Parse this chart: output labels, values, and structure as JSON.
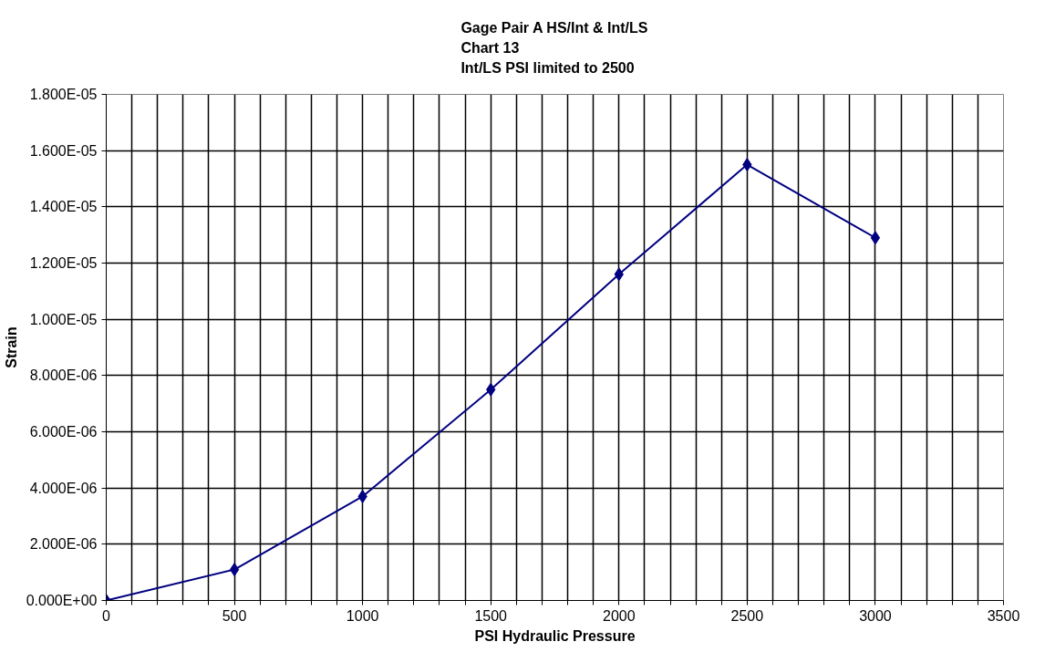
{
  "chart_data": {
    "type": "line",
    "title": "Gage Pair A HS/Int & Int/LS\nChart 13\nInt/LS PSI limited to 2500",
    "xlabel": "PSI Hydraulic Pressure",
    "ylabel": "Strain",
    "x": [
      0,
      500,
      1000,
      1500,
      2000,
      2500,
      3000
    ],
    "series": [
      {
        "color": "#000080",
        "values": [
          0.0,
          1.1e-06,
          3.7e-06,
          7.5e-06,
          1.16e-05,
          1.55e-05,
          1.29e-05
        ]
      }
    ],
    "marker": "diamond",
    "line_style": "solid",
    "grid": true,
    "xlim": [
      0,
      3500
    ],
    "xticks": [
      0,
      {
        "value": 100,
        "label": null
      },
      {
        "value": 200,
        "label": null
      },
      {
        "value": 300,
        "label": null
      },
      {
        "value": 400,
        "label": null
      },
      500,
      {
        "value": 600,
        "label": null
      },
      {
        "value": 700,
        "label": null
      },
      {
        "value": 800,
        "label": null
      },
      {
        "value": 900,
        "label": null
      },
      1000,
      {
        "value": 1100,
        "label": null
      },
      {
        "value": 1200,
        "label": null
      },
      {
        "value": 1300,
        "label": null
      },
      {
        "value": 1400,
        "label": null
      },
      1500,
      {
        "value": 1600,
        "label": null
      },
      {
        "value": 1700,
        "label": null
      },
      {
        "value": 1800,
        "label": null
      },
      {
        "value": 1900,
        "label": null
      },
      2000,
      {
        "value": 2100,
        "label": null
      },
      {
        "value": 2200,
        "label": null
      },
      {
        "value": 2300,
        "label": null
      },
      {
        "value": 2400,
        "label": null
      },
      2500,
      {
        "value": 2600,
        "label": null
      },
      {
        "value": 2700,
        "label": null
      },
      {
        "value": 2800,
        "label": null
      },
      {
        "value": 2900,
        "label": null
      },
      3000,
      {
        "value": 3100,
        "label": null
      },
      {
        "value": 3200,
        "label": null
      },
      {
        "value": 3300,
        "label": null
      },
      {
        "value": 3400,
        "label": null
      },
      3500
    ],
    "ylim": [
      0,
      1.8e-05
    ],
    "yticks": [
      {
        "value": 0,
        "label": "0.000E+00"
      },
      {
        "value": 2e-06,
        "label": "2.000E-06"
      },
      {
        "value": 4e-06,
        "label": "4.000E-06"
      },
      {
        "value": 6e-06,
        "label": "6.000E-06"
      },
      {
        "value": 8e-06,
        "label": "8.000E-06"
      },
      {
        "value": 1e-05,
        "label": "1.000E-05"
      },
      {
        "value": 1.2e-05,
        "label": "1.200E-05"
      },
      {
        "value": 1.4e-05,
        "label": "1.400E-05"
      },
      {
        "value": 1.6e-05,
        "label": "1.600E-05"
      },
      {
        "value": 1.8e-05,
        "label": "1.800E-05"
      }
    ]
  }
}
